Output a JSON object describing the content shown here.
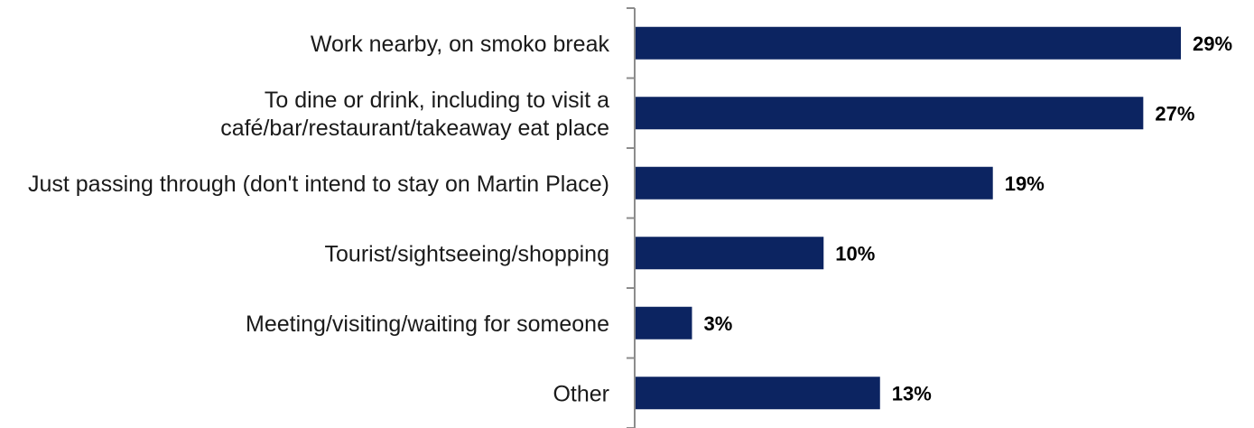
{
  "chart_data": {
    "type": "bar",
    "orientation": "horizontal",
    "categories": [
      [
        "Work nearby, on smoko break"
      ],
      [
        "To dine or drink, including to visit a",
        "café/bar/restaurant/takeaway eat place"
      ],
      [
        "Just passing through (don't intend to stay on Martin Place)"
      ],
      [
        "Tourist/sightseeing/shopping"
      ],
      [
        "Meeting/visiting/waiting for someone"
      ],
      [
        "Other"
      ]
    ],
    "values": [
      29,
      27,
      19,
      10,
      3,
      13
    ],
    "value_labels": [
      "29%",
      "27%",
      "19%",
      "10%",
      "3%",
      "13%"
    ],
    "unit": "%",
    "xlim": [
      0,
      30
    ],
    "bar_color": "#0c2461",
    "axis_color": "#8c8c8c",
    "grid": false,
    "legend": "none"
  }
}
